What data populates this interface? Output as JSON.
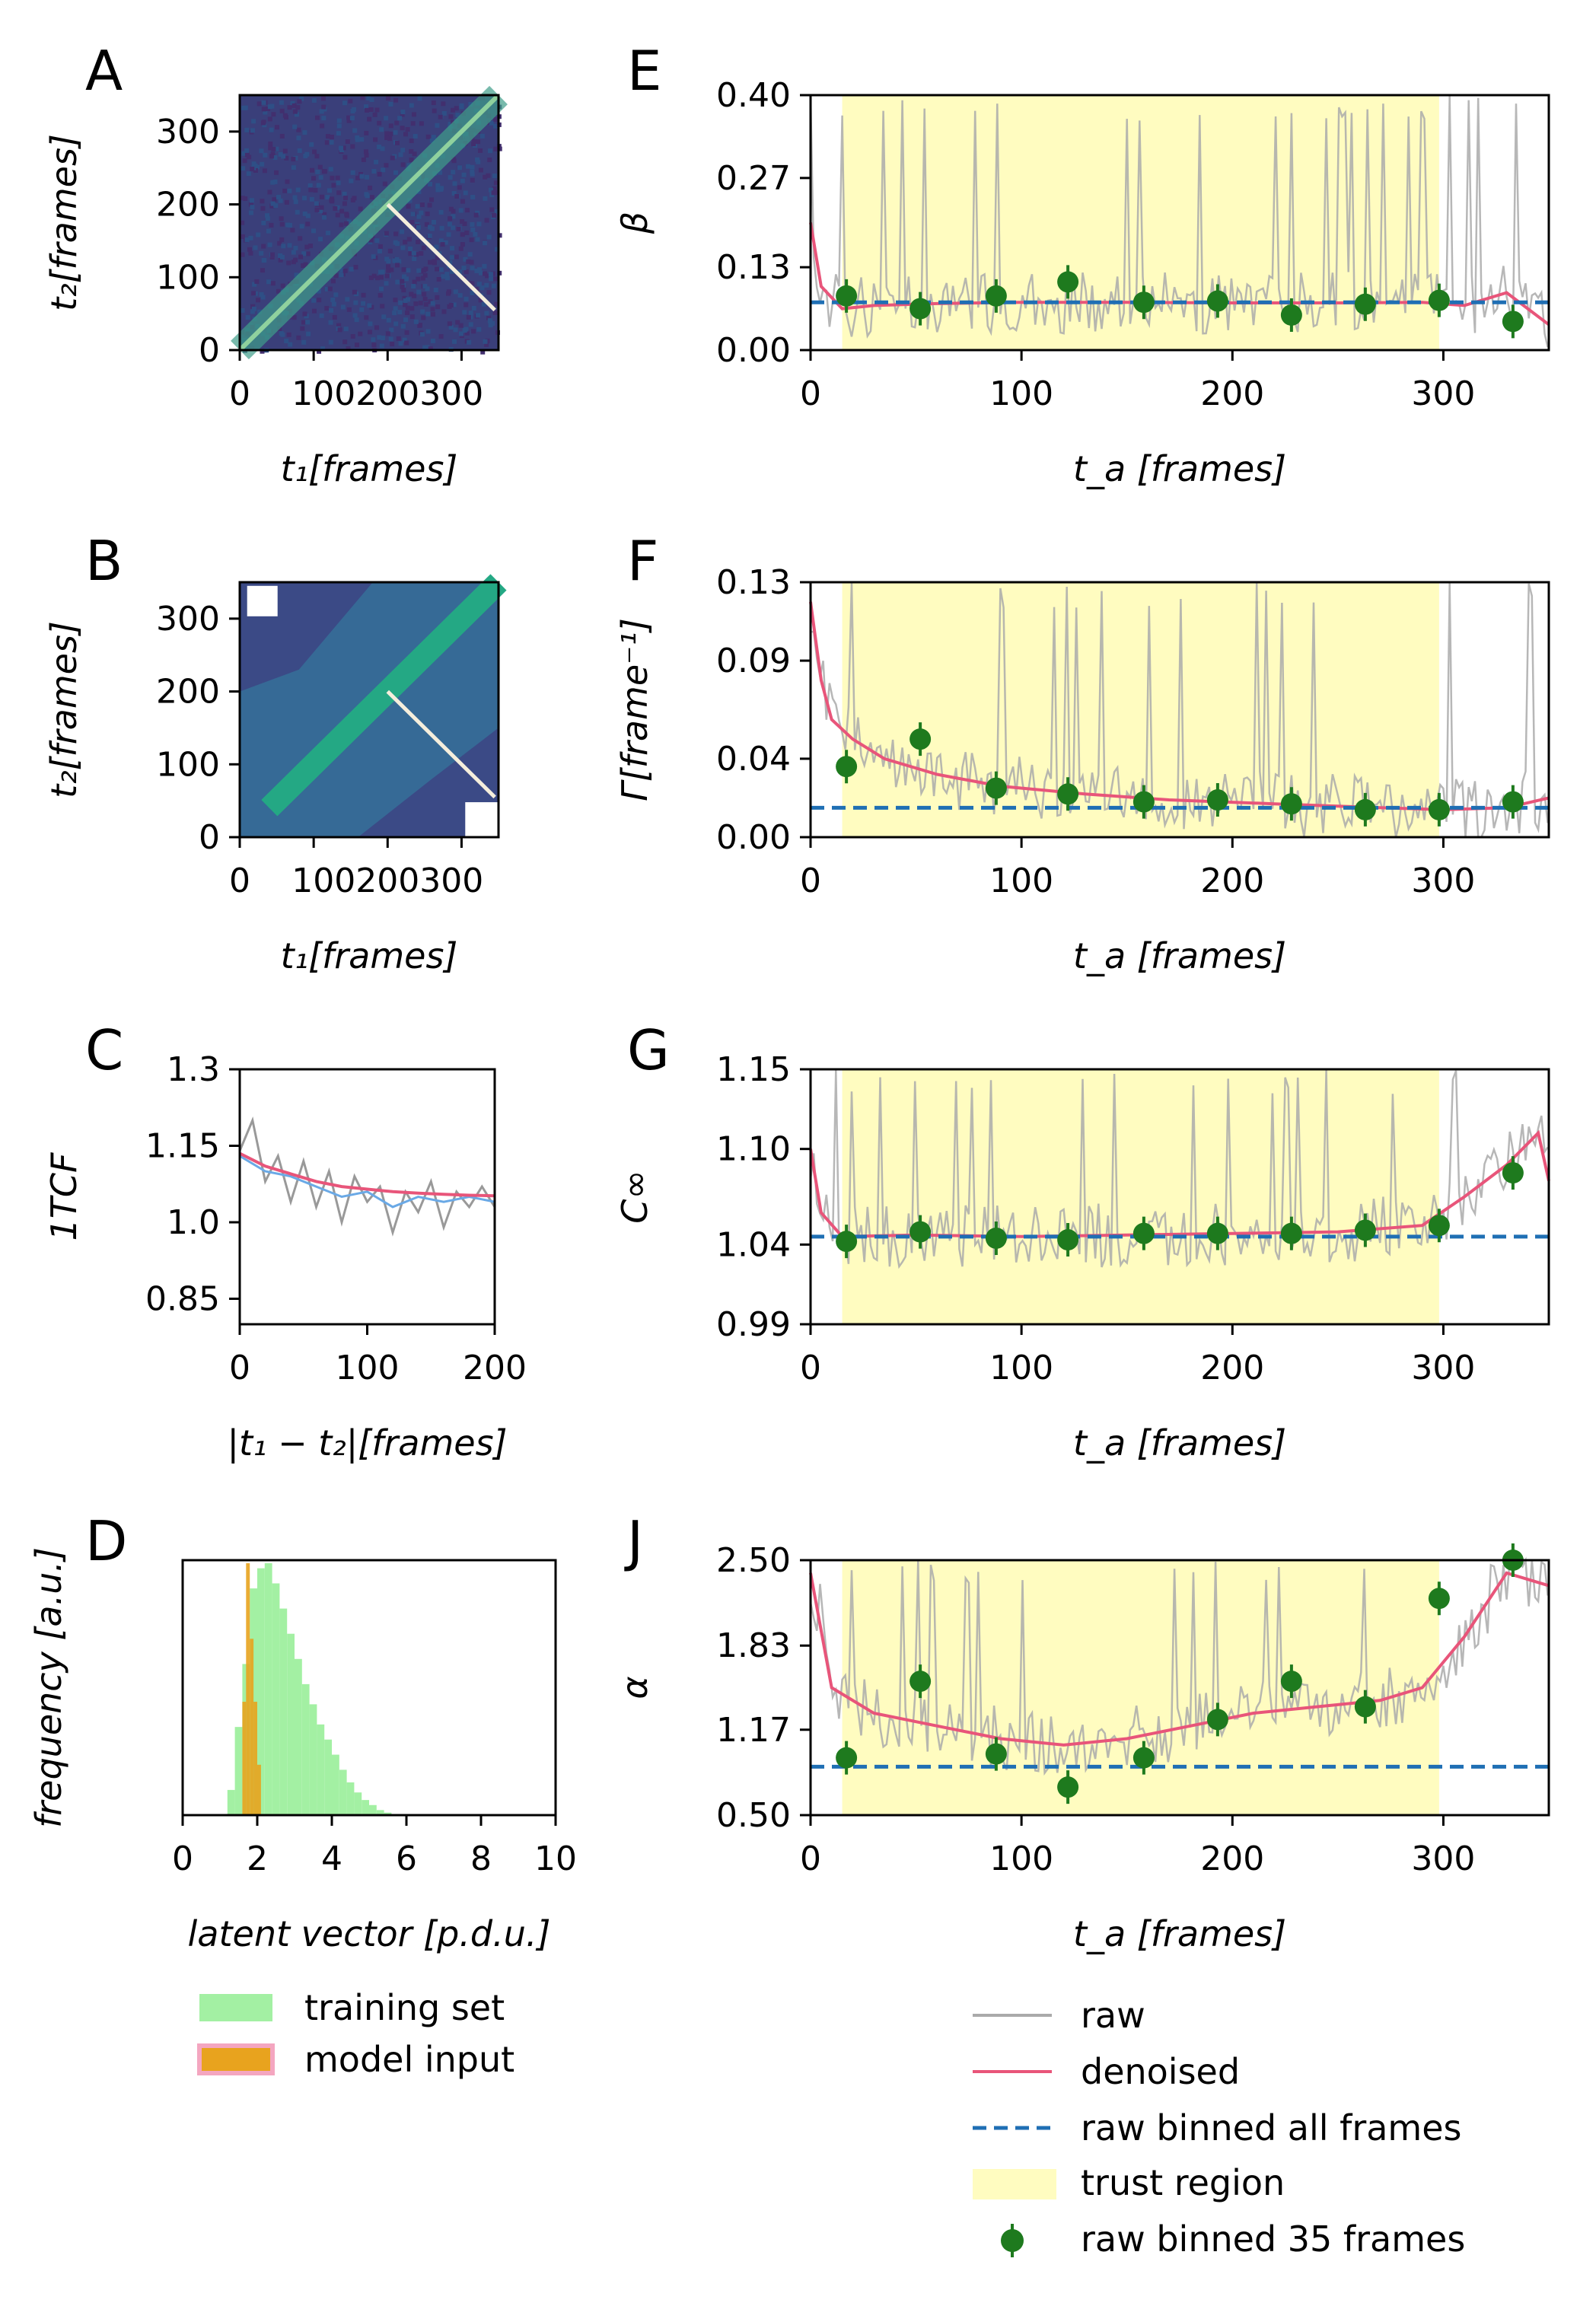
{
  "chart_data": [
    {
      "panel": "A",
      "type": "heatmap",
      "xlabel": "t₁[frames]",
      "ylabel": "t₂[frames]",
      "xticks": [
        "0",
        "100200300"
      ],
      "yticks": [
        "0",
        "100",
        "200",
        "300"
      ],
      "xlim": [
        0,
        350
      ],
      "ylim": [
        0,
        350
      ],
      "description_values": {
        "diagonal": "bright",
        "anti_diagonal_line": [
          [
            200,
            200
          ],
          [
            350,
            50
          ]
        ]
      }
    },
    {
      "panel": "B",
      "type": "heatmap",
      "xlabel": "t₁[frames]",
      "ylabel": "t₂[frames]",
      "xticks": [
        "0",
        "100200300"
      ],
      "yticks": [
        "0",
        "100",
        "200",
        "300"
      ],
      "xlim": [
        0,
        350
      ],
      "ylim": [
        0,
        350
      ]
    },
    {
      "panel": "C",
      "type": "line",
      "xlabel": "|t₁ − t₂|[frames]",
      "ylabel": "1TCF",
      "xticks": [
        "0",
        "100",
        "200"
      ],
      "yticks": [
        "0.85",
        "1.0",
        "1.15",
        "1.3"
      ],
      "xlim": [
        0,
        200
      ],
      "ylim": [
        0.8,
        1.3
      ],
      "series": [
        {
          "color": "#999999",
          "x": [
            0,
            10,
            20,
            30,
            40,
            50,
            60,
            70,
            80,
            90,
            100,
            110,
            120,
            130,
            140,
            150,
            160,
            170,
            180,
            190,
            200
          ],
          "y": [
            1.14,
            1.2,
            1.08,
            1.13,
            1.04,
            1.12,
            1.03,
            1.1,
            1.0,
            1.09,
            1.04,
            1.07,
            0.98,
            1.06,
            1.02,
            1.08,
            0.99,
            1.06,
            1.03,
            1.07,
            1.03
          ]
        },
        {
          "color": "#6aa9e6",
          "x": [
            0,
            20,
            40,
            60,
            80,
            100,
            120,
            140,
            160,
            180,
            200
          ],
          "y": [
            1.13,
            1.1,
            1.09,
            1.07,
            1.05,
            1.06,
            1.03,
            1.05,
            1.04,
            1.05,
            1.04
          ]
        },
        {
          "color": "#e8557a",
          "x": [
            0,
            20,
            40,
            60,
            80,
            100,
            120,
            140,
            160,
            180,
            200
          ],
          "y": [
            1.135,
            1.11,
            1.095,
            1.08,
            1.07,
            1.065,
            1.06,
            1.057,
            1.055,
            1.053,
            1.052
          ]
        }
      ]
    },
    {
      "panel": "D",
      "type": "bar",
      "xlabel": "latent vector [p.d.u.]",
      "ylabel": "frequency [a.u.]",
      "xticks": [
        "0",
        "2",
        "4",
        "6",
        "8",
        "10"
      ],
      "xlim": [
        0,
        10
      ],
      "series": [
        {
          "name": "training set",
          "color": "#90ee90",
          "bins": [
            1.2,
            1.4,
            1.6,
            1.8,
            2.0,
            2.2,
            2.4,
            2.6,
            2.8,
            3.0,
            3.2,
            3.4,
            3.6,
            3.8,
            4.0,
            4.2,
            4.4,
            4.6,
            4.8,
            5.0,
            5.2,
            5.4
          ],
          "values": [
            0.1,
            0.35,
            0.6,
            0.9,
            0.98,
            1.0,
            0.92,
            0.82,
            0.72,
            0.62,
            0.52,
            0.44,
            0.36,
            0.3,
            0.24,
            0.18,
            0.13,
            0.09,
            0.06,
            0.04,
            0.02,
            0.01
          ]
        },
        {
          "name": "model input",
          "color": "#e8a31e",
          "bins": [
            1.6,
            1.7,
            1.8,
            1.9,
            2.0
          ],
          "values": [
            0.45,
            1.0,
            0.7,
            0.45,
            0.2
          ]
        }
      ]
    },
    {
      "panel": "E",
      "type": "line",
      "xlabel": "t_a [frames]",
      "ylabel": "β",
      "xticks": [
        "0",
        "100",
        "200",
        "300"
      ],
      "yticks": [
        "0.00",
        "0.13",
        "0.27",
        "0.40"
      ],
      "xlim": [
        0,
        350
      ],
      "ylim": [
        0,
        0.4
      ],
      "trust_region": [
        15,
        298
      ],
      "binned_all": 0.075,
      "binned_35": {
        "x": [
          17,
          52,
          88,
          122,
          158,
          193,
          228,
          263,
          298,
          333
        ],
        "y": [
          0.085,
          0.065,
          0.085,
          0.107,
          0.075,
          0.077,
          0.055,
          0.072,
          0.078,
          0.045
        ]
      },
      "denoised": {
        "x": [
          0,
          5,
          15,
          30,
          60,
          100,
          150,
          200,
          250,
          290,
          310,
          330,
          350
        ],
        "y": [
          0.2,
          0.1,
          0.065,
          0.07,
          0.073,
          0.075,
          0.075,
          0.074,
          0.074,
          0.075,
          0.07,
          0.09,
          0.04
        ]
      }
    },
    {
      "panel": "F",
      "type": "line",
      "xlabel": "t_a [frames]",
      "ylabel": "Γ[frame⁻¹]",
      "xticks": [
        "0",
        "100",
        "200",
        "300"
      ],
      "yticks": [
        "0.00",
        "0.04",
        "0.09",
        "0.13"
      ],
      "xlim": [
        0,
        350
      ],
      "ylim": [
        0,
        0.13
      ],
      "trust_region": [
        15,
        298
      ],
      "binned_all": 0.015,
      "binned_35": {
        "x": [
          17,
          52,
          88,
          122,
          158,
          193,
          228,
          263,
          298,
          333
        ],
        "y": [
          0.036,
          0.05,
          0.025,
          0.022,
          0.018,
          0.019,
          0.017,
          0.014,
          0.014,
          0.018
        ]
      },
      "denoised": {
        "x": [
          0,
          5,
          10,
          20,
          35,
          60,
          90,
          130,
          170,
          220,
          270,
          300,
          330,
          350
        ],
        "y": [
          0.12,
          0.08,
          0.06,
          0.05,
          0.04,
          0.032,
          0.026,
          0.022,
          0.019,
          0.017,
          0.015,
          0.014,
          0.015,
          0.02
        ]
      }
    },
    {
      "panel": "G",
      "type": "line",
      "xlabel": "t_a [frames]",
      "ylabel": "C∞",
      "xticks": [
        "0",
        "100",
        "200",
        "300"
      ],
      "yticks": [
        "0.99",
        "1.04",
        "1.10",
        "1.15"
      ],
      "xlim": [
        0,
        350
      ],
      "ylim": [
        0.99,
        1.15
      ],
      "trust_region": [
        15,
        298
      ],
      "binned_all": 1.045,
      "binned_35": {
        "x": [
          17,
          52,
          88,
          122,
          158,
          193,
          228,
          263,
          298,
          333
        ],
        "y": [
          1.042,
          1.048,
          1.044,
          1.043,
          1.047,
          1.047,
          1.047,
          1.049,
          1.052,
          1.085
        ]
      },
      "denoised": {
        "x": [
          0,
          5,
          15,
          50,
          100,
          150,
          200,
          250,
          290,
          310,
          330,
          345,
          350
        ],
        "y": [
          1.1,
          1.06,
          1.045,
          1.046,
          1.045,
          1.046,
          1.047,
          1.048,
          1.052,
          1.07,
          1.09,
          1.11,
          1.08
        ]
      }
    },
    {
      "panel": "J",
      "type": "line",
      "xlabel": "t_a [frames]",
      "ylabel": "α",
      "xticks": [
        "0",
        "100",
        "200",
        "300"
      ],
      "yticks": [
        "0.50",
        "1.17",
        "1.83",
        "2.50"
      ],
      "xlim": [
        0,
        350
      ],
      "ylim": [
        0.5,
        2.5
      ],
      "trust_region": [
        15,
        298
      ],
      "binned_all": 0.88,
      "binned_35": {
        "x": [
          17,
          52,
          88,
          122,
          158,
          193,
          228,
          263,
          298,
          333
        ],
        "y": [
          0.95,
          1.55,
          0.98,
          0.72,
          0.95,
          1.25,
          1.55,
          1.35,
          2.2,
          2.5
        ]
      },
      "denoised": {
        "x": [
          0,
          10,
          30,
          60,
          90,
          120,
          150,
          180,
          210,
          240,
          270,
          290,
          310,
          330,
          350
        ],
        "y": [
          2.4,
          1.5,
          1.3,
          1.2,
          1.1,
          1.05,
          1.1,
          1.2,
          1.3,
          1.35,
          1.4,
          1.5,
          1.9,
          2.4,
          2.3
        ]
      }
    }
  ],
  "panels": {
    "A": "A",
    "B": "B",
    "C": "C",
    "D": "D",
    "E": "E",
    "F": "F",
    "G": "G",
    "J": "J"
  },
  "legend_left": {
    "training": "training set",
    "model": "model input"
  },
  "legend_right": {
    "raw": "raw",
    "denoised": "denoised",
    "binned_all": "raw binned all frames",
    "trust": "trust region",
    "binned_35": "raw binned 35 frames"
  },
  "colors": {
    "raw": "#aaaaaa",
    "denoised": "#e8557a",
    "binned_all": "#1f6fb4",
    "trust": "#fffcc0",
    "binned_35": "#1e7a1e",
    "training": "#a3f0a3",
    "model": "#e8a31e"
  }
}
